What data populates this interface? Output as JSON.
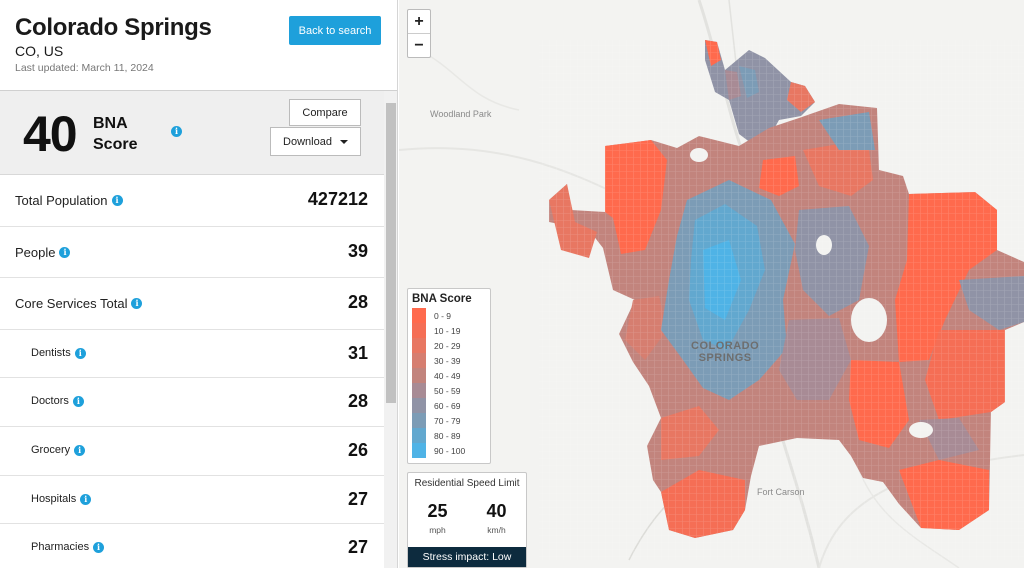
{
  "city": {
    "title": "Colorado Springs",
    "subtitle": "CO, US",
    "updated": "Last updated: March 11, 2024",
    "back_label": "Back to search"
  },
  "score": {
    "value": "40",
    "label_line1": "BNA",
    "label_line2": "Score",
    "compare_label": "Compare",
    "download_label": "Download"
  },
  "metrics": [
    {
      "name": "Total Population",
      "value": "427212"
    },
    {
      "name": "People",
      "value": "39"
    },
    {
      "name": "Core Services Total",
      "value": "28"
    },
    {
      "name": "Dentists",
      "value": "31"
    },
    {
      "name": "Doctors",
      "value": "28"
    },
    {
      "name": "Grocery",
      "value": "26"
    },
    {
      "name": "Hospitals",
      "value": "27"
    },
    {
      "name": "Pharmacies",
      "value": "27"
    }
  ],
  "map": {
    "zoom_in": "+",
    "zoom_out": "−",
    "labels": {
      "woodland_park": "Woodland Park",
      "city_line1": "COLORADO",
      "city_line2": "SPRINGS",
      "fort_carson": "Fort Carson"
    },
    "legend": {
      "title": "BNA Score",
      "items": [
        {
          "label": "0 - 9",
          "color": "#ff6a4d"
        },
        {
          "label": "10 - 19",
          "color": "#f56e55"
        },
        {
          "label": "20 - 29",
          "color": "#e87762"
        },
        {
          "label": "30 - 39",
          "color": "#d67e70"
        },
        {
          "label": "40 - 49",
          "color": "#c2847d"
        },
        {
          "label": "50 - 59",
          "color": "#a88b95"
        },
        {
          "label": "60 - 69",
          "color": "#9093a6"
        },
        {
          "label": "70 - 79",
          "color": "#7c9cb6"
        },
        {
          "label": "80 - 89",
          "color": "#62a8cf"
        },
        {
          "label": "90 - 100",
          "color": "#4fb3e6"
        }
      ]
    },
    "speed": {
      "title": "Residential Speed Limit",
      "mph_value": "25",
      "mph_unit": "mph",
      "kmh_value": "40",
      "kmh_unit": "km/h",
      "impact": "Stress impact: Low"
    }
  },
  "info_glyph": "i"
}
